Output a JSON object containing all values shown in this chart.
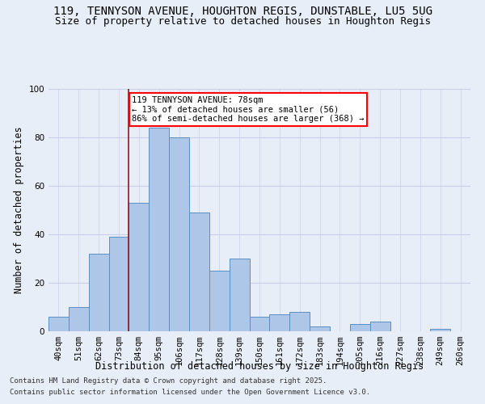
{
  "title_line1": "119, TENNYSON AVENUE, HOUGHTON REGIS, DUNSTABLE, LU5 5UG",
  "title_line2": "Size of property relative to detached houses in Houghton Regis",
  "xlabel": "Distribution of detached houses by size in Houghton Regis",
  "ylabel": "Number of detached properties",
  "bin_labels": [
    "40sqm",
    "51sqm",
    "62sqm",
    "73sqm",
    "84sqm",
    "95sqm",
    "106sqm",
    "117sqm",
    "128sqm",
    "139sqm",
    "150sqm",
    "161sqm",
    "172sqm",
    "183sqm",
    "194sqm",
    "205sqm",
    "216sqm",
    "227sqm",
    "238sqm",
    "249sqm",
    "260sqm"
  ],
  "bar_heights": [
    6,
    10,
    32,
    39,
    53,
    84,
    80,
    49,
    25,
    30,
    6,
    7,
    8,
    2,
    0,
    3,
    4,
    0,
    0,
    1,
    0
  ],
  "bar_color": "#aec6e8",
  "bar_edge_color": "#5a8fc2",
  "vline_x_idx": 3.5,
  "vline_color": "#8b1a1a",
  "annotation_text": "119 TENNYSON AVENUE: 78sqm\n← 13% of detached houses are smaller (56)\n86% of semi-detached houses are larger (368) →",
  "annotation_box_color": "white",
  "annotation_box_edge_color": "red",
  "ylim": [
    0,
    100
  ],
  "yticks": [
    0,
    20,
    40,
    60,
    80,
    100
  ],
  "footnote1": "Contains HM Land Registry data © Crown copyright and database right 2025.",
  "footnote2": "Contains public sector information licensed under the Open Government Licence v3.0.",
  "bg_color": "#e8eef8",
  "grid_color": "#c8d0e8",
  "title_fontsize": 10,
  "subtitle_fontsize": 9,
  "axis_label_fontsize": 8.5,
  "tick_fontsize": 7.5,
  "annotation_fontsize": 7.5,
  "footnote_fontsize": 6.5
}
